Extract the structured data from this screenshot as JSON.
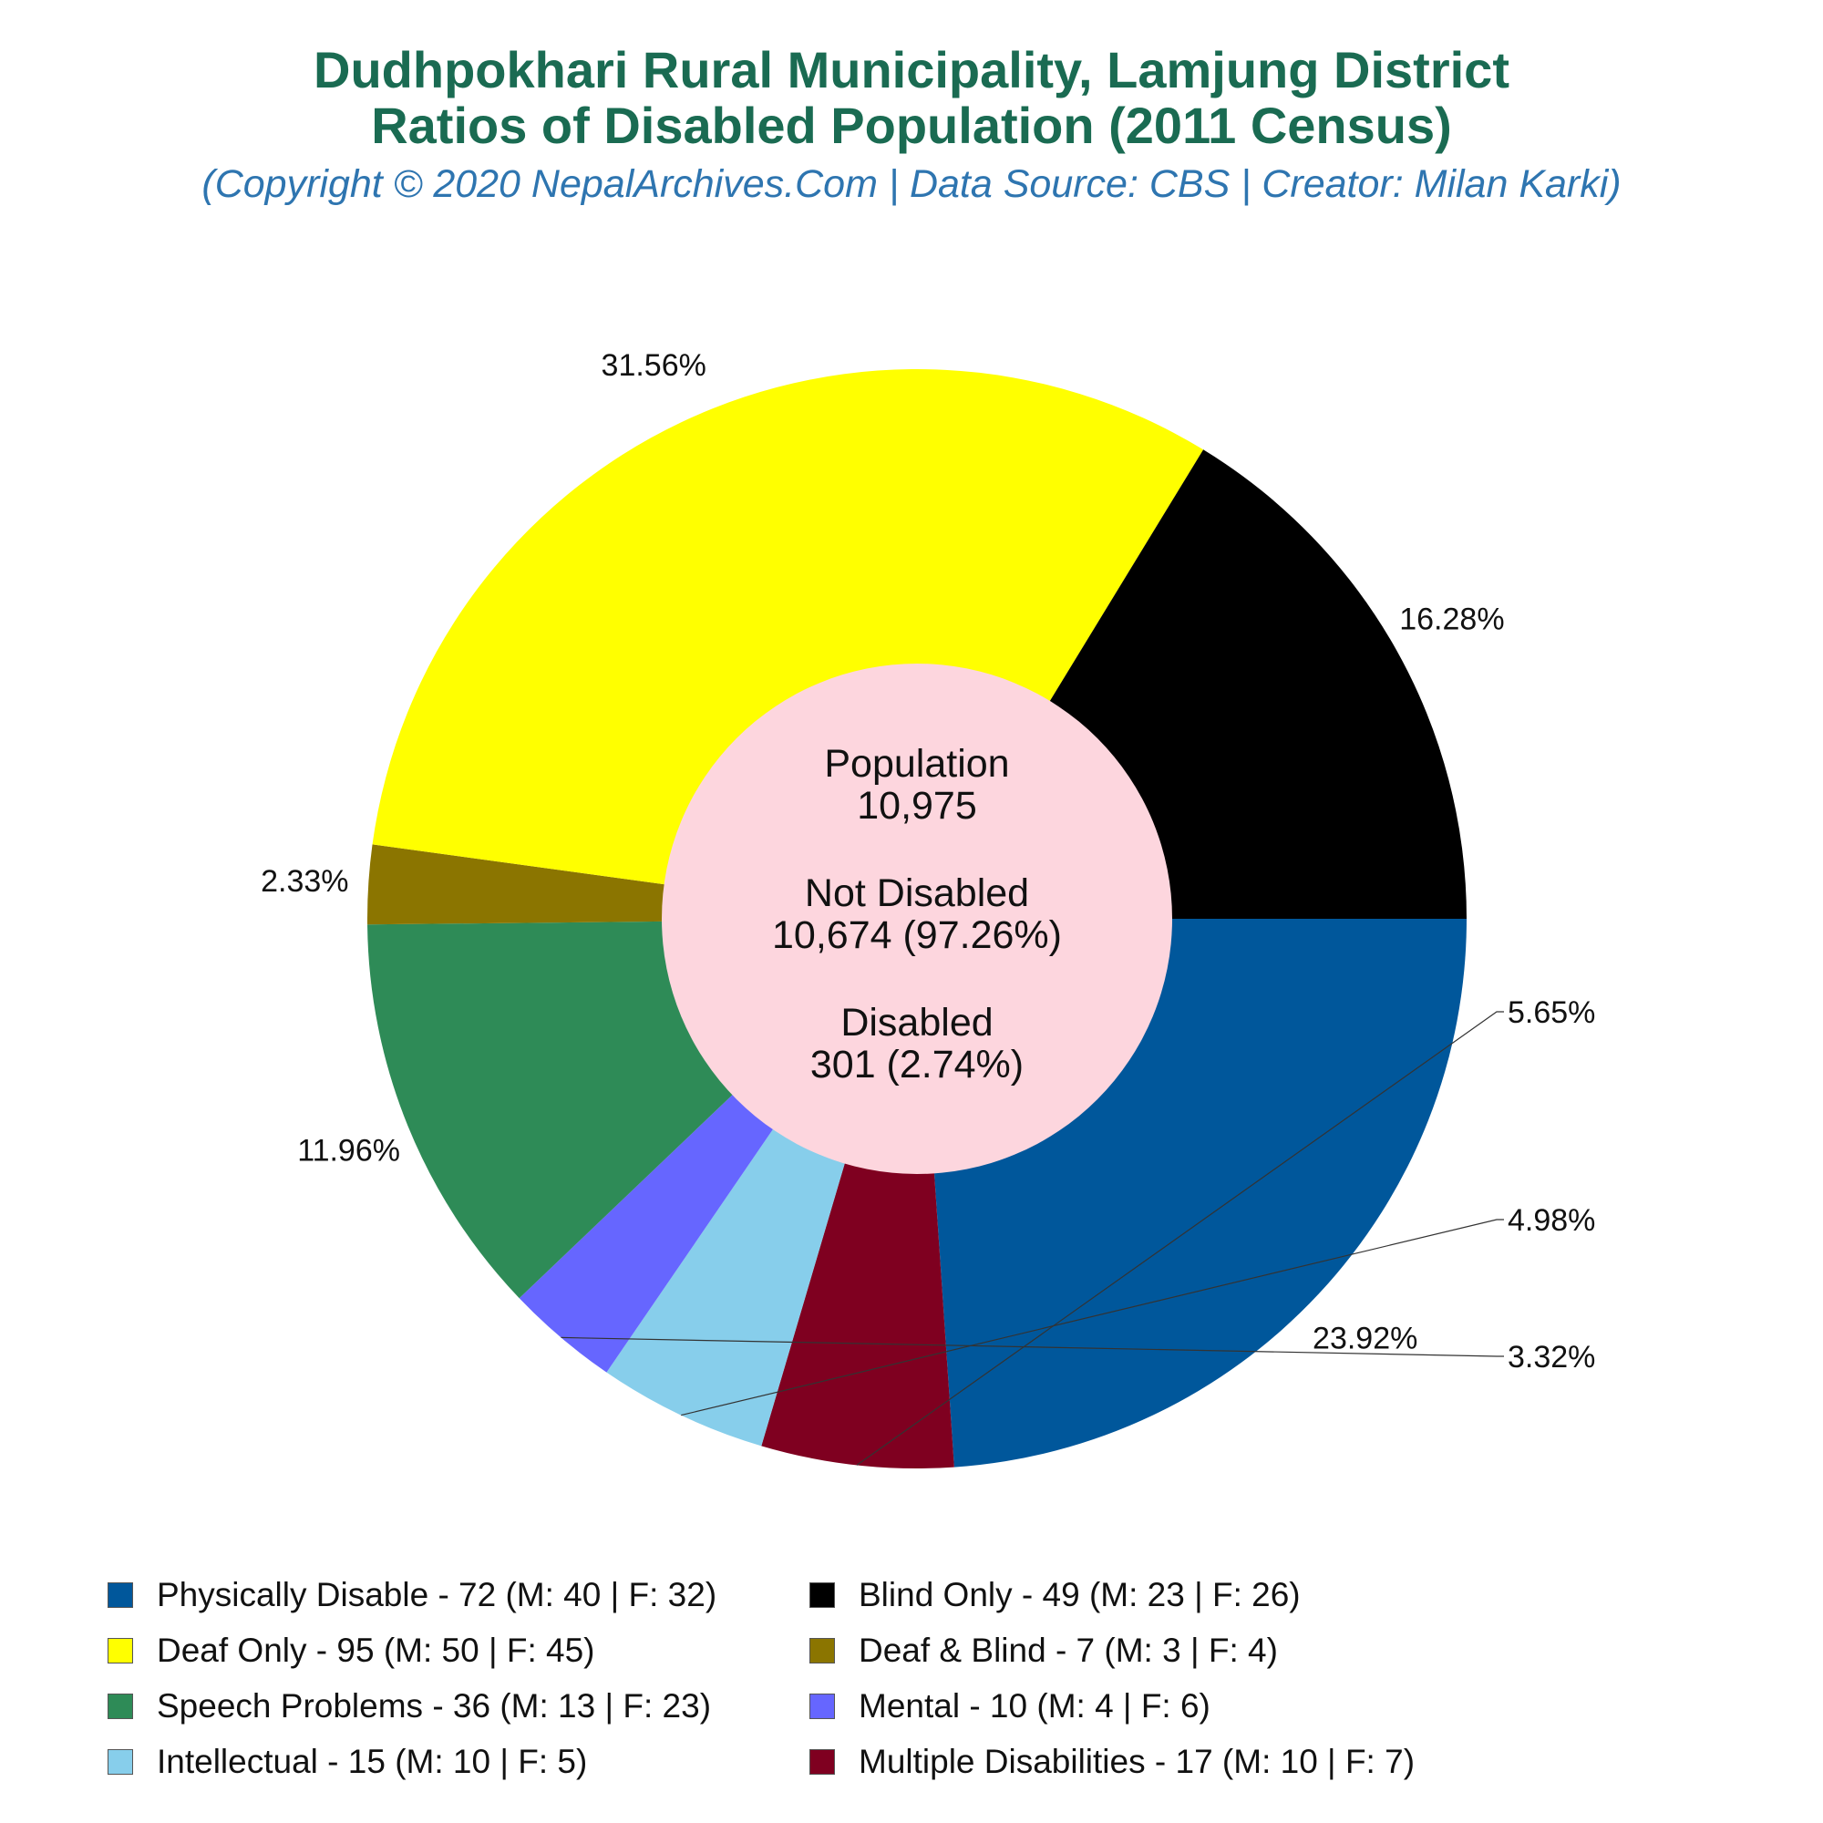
{
  "title_line1": "Dudhpokhari Rural Municipality, Lamjung District",
  "title_line2": "Ratios of Disabled Population (2011 Census)",
  "subtitle": "(Copyright © 2020 NepalArchives.Com | Data Source: CBS | Creator: Milan Karki)",
  "center": {
    "pop_label": "Population",
    "pop_value": "10,975",
    "nd_label": "Not Disabled",
    "nd_value": "10,674 (97.26%)",
    "d_label": "Disabled",
    "d_value": "301 (2.74%)"
  },
  "chart_data": {
    "type": "pie",
    "title": "Dudhpokhari Rural Municipality, Lamjung District Ratios of Disabled Population (2011 Census)",
    "center_color": "#fdd6de",
    "slices": [
      {
        "legend": "Physically Disable - 72 (M: 40 | F: 32)",
        "value": 72,
        "pct_label": "23.92%",
        "color": "#00579b"
      },
      {
        "legend": "Multiple Disabilities - 17 (M: 10 | F: 7)",
        "value": 17,
        "pct_label": "5.65%",
        "color": "#7f0020"
      },
      {
        "legend": "Intellectual - 15 (M: 10 | F: 5)",
        "value": 15,
        "pct_label": "4.98%",
        "color": "#87ceeb"
      },
      {
        "legend": "Mental - 10 (M: 4 | F: 6)",
        "value": 10,
        "pct_label": "3.32%",
        "color": "#6666ff"
      },
      {
        "legend": "Speech Problems - 36 (M: 13 | F: 23)",
        "value": 36,
        "pct_label": "11.96%",
        "color": "#2e8b57"
      },
      {
        "legend": "Deaf & Blind - 7 (M: 3 | F: 4)",
        "value": 7,
        "pct_label": "2.33%",
        "color": "#8b7500"
      },
      {
        "legend": "Deaf Only - 95 (M: 50 | F: 45)",
        "value": 95,
        "pct_label": "31.56%",
        "color": "#ffff00"
      },
      {
        "legend": "Blind Only - 49 (M: 23 | F: 26)",
        "value": 49,
        "pct_label": "16.28%",
        "color": "#000000"
      }
    ],
    "legend_order": [
      "Physically Disable - 72 (M: 40 | F: 32)",
      "Blind Only - 49 (M: 23 | F: 26)",
      "Deaf Only - 95 (M: 50 | F: 45)",
      "Deaf & Blind - 7 (M: 3 | F: 4)",
      "Speech Problems - 36 (M: 13 | F: 23)",
      "Mental - 10 (M: 4 | F: 6)",
      "Intellectual - 15 (M: 10 | F: 5)",
      "Multiple Disabilities - 17 (M: 10 | F: 7)"
    ]
  }
}
